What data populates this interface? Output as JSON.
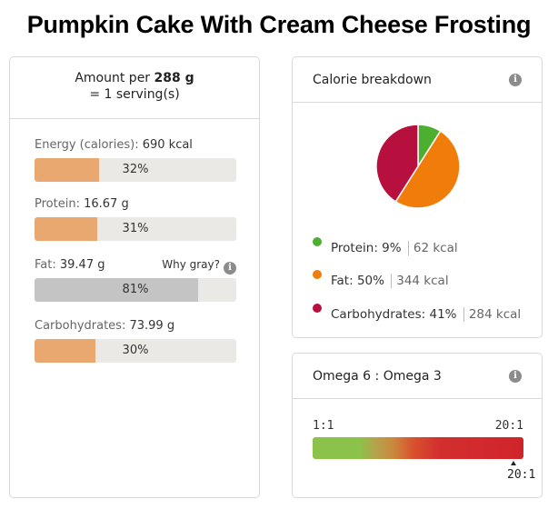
{
  "title": "Pumpkin Cake With Cream Cheese Frosting",
  "amount": {
    "prefix": "Amount per",
    "weight": "288 g",
    "serving": "= 1 serving(s)"
  },
  "nutrients": [
    {
      "label": "Energy (calories):",
      "value": "690 kcal",
      "percent_text": "32%",
      "fill": 0.32,
      "gray": false
    },
    {
      "label": "Protein:",
      "value": "16.67 g",
      "percent_text": "31%",
      "fill": 0.31,
      "gray": false
    },
    {
      "label": "Fat:",
      "value": "39.47 g",
      "percent_text": "81%",
      "fill": 0.81,
      "gray": true,
      "why_gray": "Why gray?"
    },
    {
      "label": "Carbohydrates:",
      "value": "73.99 g",
      "percent_text": "30%",
      "fill": 0.3,
      "gray": false
    }
  ],
  "calorie_breakdown": {
    "title": "Calorie breakdown",
    "items": [
      {
        "name": "Protein:",
        "percent": "9%",
        "kcal": "62 kcal",
        "color": "#4caf2f"
      },
      {
        "name": "Fat:",
        "percent": "50%",
        "kcal": "344 kcal",
        "color": "#f07c0a"
      },
      {
        "name": "Carbohydrates:",
        "percent": "41%",
        "kcal": "284 kcal",
        "color": "#b8103e"
      }
    ]
  },
  "chart_data": {
    "type": "pie",
    "categories": [
      "Protein",
      "Fat",
      "Carbohydrates"
    ],
    "values": [
      9,
      50,
      41
    ],
    "colors": [
      "#4caf2f",
      "#f07c0a",
      "#b8103e"
    ]
  },
  "omega": {
    "title": "Omega 6 : Omega 3",
    "scale_min": "1:1",
    "scale_max": "20:1",
    "value": "20:1"
  },
  "icons": {
    "info": "i"
  }
}
